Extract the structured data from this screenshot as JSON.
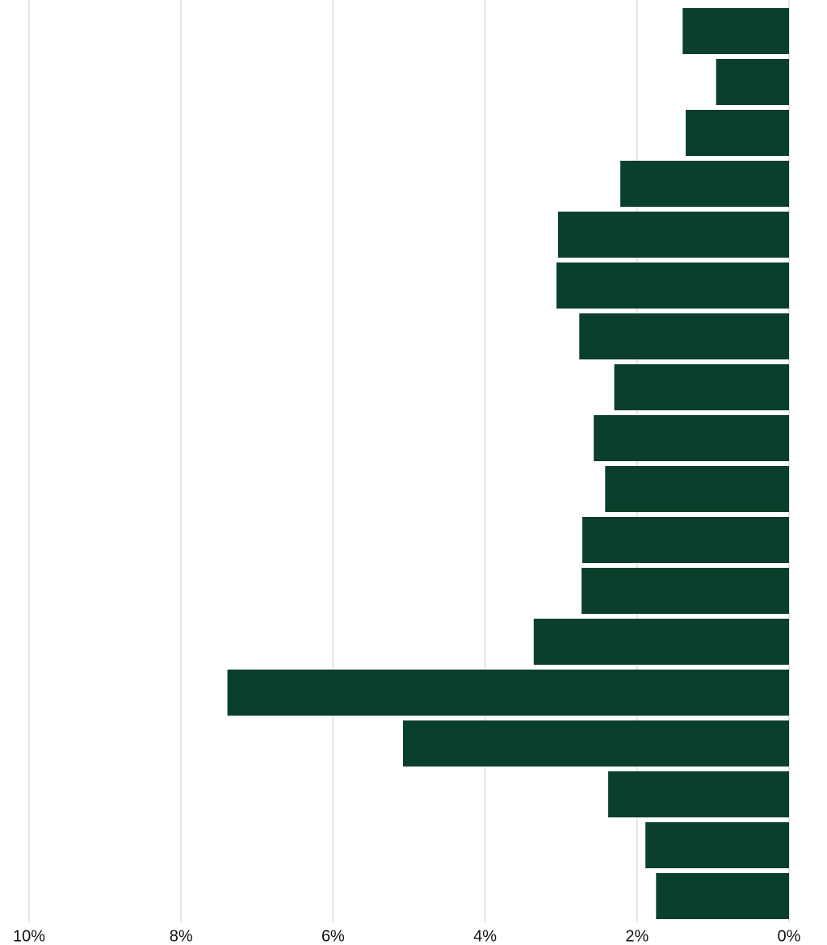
{
  "chart_data": {
    "type": "barh",
    "values": [
      1.4,
      0.96,
      1.36,
      2.22,
      3.04,
      3.06,
      2.76,
      2.3,
      2.57,
      2.42,
      2.72,
      2.73,
      3.36,
      7.39,
      5.08,
      2.38,
      1.89,
      1.75
    ],
    "color": "#0a3f2c",
    "xlim": [
      10,
      0
    ],
    "xticks": [
      {
        "value": 10,
        "label": "10%"
      },
      {
        "value": 8,
        "label": "8%"
      },
      {
        "value": 6,
        "label": "6%"
      },
      {
        "value": 4,
        "label": "4%"
      },
      {
        "value": 2,
        "label": "2%"
      },
      {
        "value": 0,
        "label": "0%"
      }
    ],
    "grid": true
  }
}
